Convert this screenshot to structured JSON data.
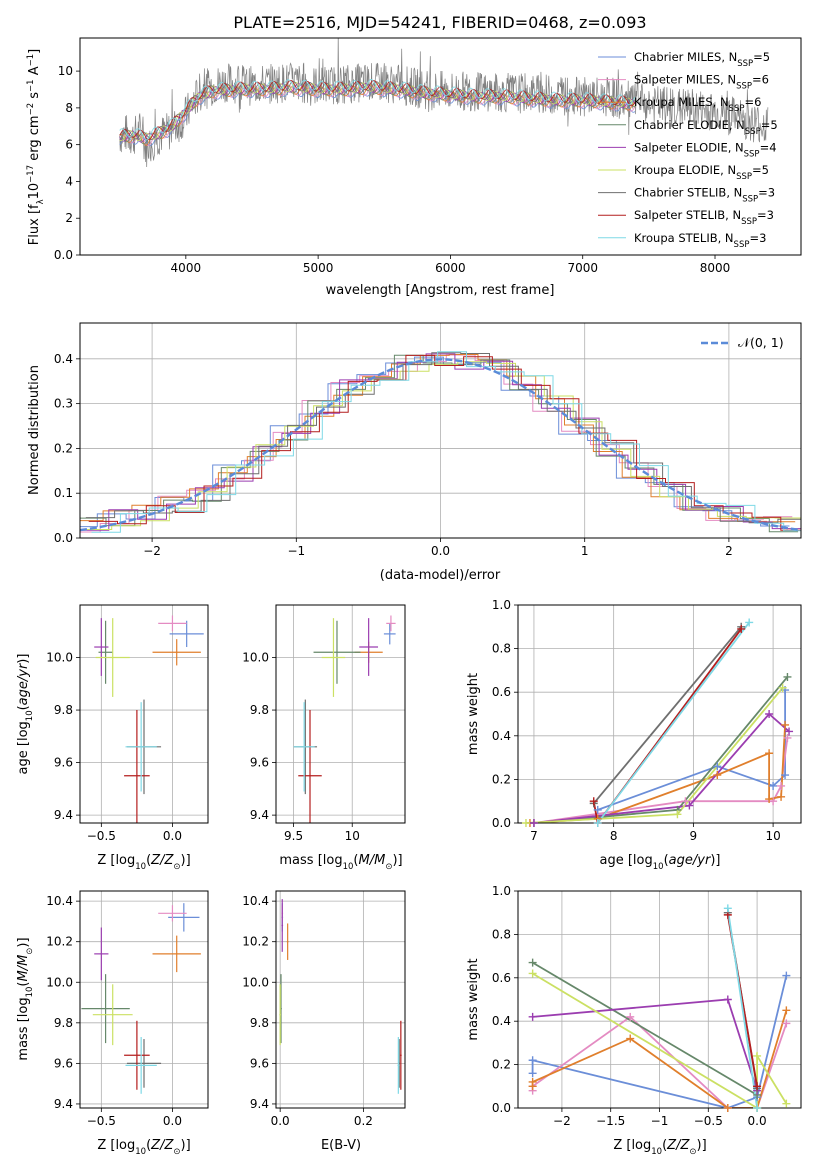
{
  "figure_title": "PLATE=2516, MJD=54241, FIBERID=0468, z=0.093",
  "colors": {
    "Chabrier MILES": "#6b8ed8",
    "Salpeter MILES": "#e48bc2",
    "Kroupa MILES": "#e07f2c",
    "Chabrier ELODIE": "#66886a",
    "Salpeter ELODIE": "#9b3db0",
    "Kroupa ELODIE": "#cbe063",
    "Chabrier STELIB": "#6f6f6f",
    "Salpeter STELIB": "#b41e1e",
    "Kroupa STELIB": "#7fd9e6"
  },
  "chart_data": [
    {
      "id": "spectrum",
      "type": "line",
      "xlabel": "wavelength [Angstrom, rest frame]",
      "ylabel": "Flux [f_λ 10^-17 erg cm^-2 s^-1 A^-1]",
      "xlim": [
        3200,
        8650
      ],
      "ylim": [
        0,
        11.8
      ],
      "xticks": [
        4000,
        5000,
        6000,
        7000,
        8000
      ],
      "yticks": [
        0,
        2,
        4,
        6,
        8,
        10
      ],
      "legend_position": "upper right",
      "legend": [
        {
          "label": "Chabrier MILES, N_SSP=5",
          "series": "Chabrier MILES"
        },
        {
          "label": "Salpeter MILES, N_SSP=6",
          "series": "Salpeter MILES"
        },
        {
          "label": "Kroupa MILES, N_SSP=6",
          "series": "Kroupa MILES"
        },
        {
          "label": "Chabrier ELODIE, N_SSP=5",
          "series": "Chabrier ELODIE"
        },
        {
          "label": "Salpeter ELODIE, N_SSP=4",
          "series": "Salpeter ELODIE"
        },
        {
          "label": "Kroupa ELODIE, N_SSP=5",
          "series": "Kroupa ELODIE"
        },
        {
          "label": "Chabrier STELIB, N_SSP=3",
          "series": "Chabrier STELIB"
        },
        {
          "label": "Salpeter STELIB, N_SSP=3",
          "series": "Salpeter STELIB"
        },
        {
          "label": "Kroupa STELIB, N_SSP=3",
          "series": "Kroupa STELIB"
        }
      ],
      "data_curve": {
        "name": "data",
        "x": [
          3500,
          3550,
          3600,
          3650,
          3700,
          3750,
          3800,
          3900,
          4000,
          4100,
          4200,
          4300,
          4400,
          4500,
          4600,
          4800,
          5000,
          5200,
          5400,
          5600,
          5800,
          6000,
          6200,
          6400,
          6600,
          6800,
          7000,
          7200,
          7400,
          7600,
          7800,
          8000,
          8200,
          8400
        ],
        "y": [
          6.5,
          6.6,
          6.4,
          6.8,
          5.8,
          6.2,
          6.5,
          6.8,
          7.6,
          8.8,
          9.2,
          9.4,
          9.3,
          9.2,
          9.3,
          9.4,
          9.2,
          9.3,
          9.4,
          9.3,
          9.0,
          8.9,
          8.9,
          8.8,
          8.8,
          8.7,
          8.6,
          8.6,
          8.3,
          8.1,
          8.0,
          7.8,
          7.4,
          7.0
        ]
      },
      "model_curve": {
        "x": [
          3500,
          3600,
          3700,
          3800,
          3900,
          4000,
          4100,
          4200,
          4400,
          4600,
          4800,
          5000,
          5200,
          5400,
          5600,
          5800,
          6000,
          6200,
          6400,
          6600,
          6800,
          7000,
          7200,
          7400
        ],
        "y": [
          6.4,
          6.5,
          6.3,
          6.6,
          7.0,
          7.8,
          8.6,
          8.9,
          9.0,
          9.0,
          9.1,
          9.0,
          9.0,
          9.1,
          9.0,
          8.8,
          8.7,
          8.6,
          8.6,
          8.5,
          8.4,
          8.4,
          8.3,
          8.2
        ]
      }
    },
    {
      "id": "residuals",
      "type": "line",
      "xlabel": "(data-model)/error",
      "ylabel": "Normed distribution",
      "xlim": [
        -2.5,
        2.5
      ],
      "ylim": [
        0,
        0.48
      ],
      "xticks": [
        -2,
        -1,
        0,
        1,
        2
      ],
      "yticks": [
        0.0,
        0.1,
        0.2,
        0.3,
        0.4
      ],
      "legend": [
        "𝒩(0, 1)"
      ],
      "legend_position": "upper right",
      "bin_edges": [
        -2.5,
        -2.3,
        -2.1,
        -1.9,
        -1.7,
        -1.5,
        -1.3,
        -1.1,
        -0.9,
        -0.7,
        -0.5,
        -0.3,
        -0.1,
        0.1,
        0.3,
        0.5,
        0.7,
        0.9,
        1.1,
        1.3,
        1.5,
        1.7,
        1.9,
        2.1,
        2.3,
        2.5
      ],
      "histogram_mean": [
        0.03,
        0.045,
        0.055,
        0.075,
        0.1,
        0.145,
        0.19,
        0.235,
        0.29,
        0.335,
        0.37,
        0.39,
        0.4,
        0.395,
        0.38,
        0.345,
        0.3,
        0.25,
        0.2,
        0.15,
        0.11,
        0.08,
        0.055,
        0.04,
        0.03
      ],
      "gaussian": {
        "mu": 0,
        "sigma": 1
      }
    },
    {
      "id": "Z-age",
      "type": "scatter",
      "xlabel": "Z [log10(Z/Z☉)]",
      "ylabel": "age [log10(age/yr)]",
      "xlim": [
        -0.65,
        0.25
      ],
      "ylim": [
        9.37,
        10.2
      ],
      "xticks": [
        -0.5,
        0.0
      ],
      "yticks": [
        9.4,
        9.6,
        9.8,
        10.0
      ],
      "points": [
        {
          "series": "Chabrier MILES",
          "x": 0.1,
          "xerr": 0.12,
          "y": 10.09,
          "yerr": 0.05
        },
        {
          "series": "Salpeter MILES",
          "x": 0.0,
          "xerr": 0.1,
          "y": 10.13,
          "yerr": 0.03
        },
        {
          "series": "Kroupa MILES",
          "x": 0.03,
          "xerr": 0.17,
          "y": 10.02,
          "yerr": 0.05
        },
        {
          "series": "Chabrier ELODIE",
          "x": -0.47,
          "xerr": 0.05,
          "y": 10.02,
          "yerr": 0.12
        },
        {
          "series": "Salpeter ELODIE",
          "x": -0.5,
          "xerr": 0.05,
          "y": 10.04,
          "yerr": 0.11
        },
        {
          "series": "Kroupa ELODIE",
          "x": -0.42,
          "xerr": 0.12,
          "y": 10.0,
          "yerr": 0.15
        },
        {
          "series": "Chabrier STELIB",
          "x": -0.2,
          "xerr": 0.12,
          "y": 9.66,
          "yerr": 0.18
        },
        {
          "series": "Salpeter STELIB",
          "x": -0.25,
          "xerr": 0.09,
          "y": 9.55,
          "yerr": 0.25
        },
        {
          "series": "Kroupa STELIB",
          "x": -0.22,
          "xerr": 0.11,
          "y": 9.66,
          "yerr": 0.17
        }
      ]
    },
    {
      "id": "mass-age",
      "type": "scatter",
      "xlabel": "mass [log10(M/M☉)]",
      "ylabel": "",
      "xlim": [
        9.35,
        10.45
      ],
      "ylim": [
        9.37,
        10.2
      ],
      "xticks": [
        9.5,
        10.0
      ],
      "yticks": [
        9.4,
        9.6,
        9.8,
        10.0
      ],
      "points": [
        {
          "series": "Chabrier MILES",
          "x": 10.32,
          "xerr": 0.05,
          "y": 10.09,
          "yerr": 0.04
        },
        {
          "series": "Salpeter MILES",
          "x": 10.33,
          "xerr": 0.04,
          "y": 10.13,
          "yerr": 0.03
        },
        {
          "series": "Kroupa MILES",
          "x": 10.14,
          "xerr": 0.12,
          "y": 10.02,
          "yerr": 0.04
        },
        {
          "series": "Chabrier ELODIE",
          "x": 9.87,
          "xerr": 0.2,
          "y": 10.02,
          "yerr": 0.12
        },
        {
          "series": "Salpeter ELODIE",
          "x": 10.14,
          "xerr": 0.08,
          "y": 10.04,
          "yerr": 0.11
        },
        {
          "series": "Kroupa ELODIE",
          "x": 9.84,
          "xerr": 0.1,
          "y": 10.0,
          "yerr": 0.15
        },
        {
          "series": "Chabrier STELIB",
          "x": 9.6,
          "xerr": 0.1,
          "y": 9.66,
          "yerr": 0.18
        },
        {
          "series": "Salpeter STELIB",
          "x": 9.64,
          "xerr": 0.1,
          "y": 9.55,
          "yerr": 0.25
        },
        {
          "series": "Kroupa STELIB",
          "x": 9.59,
          "xerr": 0.09,
          "y": 9.66,
          "yerr": 0.17
        }
      ]
    },
    {
      "id": "age-weight",
      "type": "line",
      "xlabel": "age [log10(age/yr)]",
      "ylabel": "mass weight",
      "xlim": [
        6.8,
        10.35
      ],
      "ylim": [
        0,
        1
      ],
      "xticks": [
        7,
        8,
        9,
        10
      ],
      "yticks": [
        0.0,
        0.2,
        0.4,
        0.6,
        0.8,
        1.0
      ],
      "series": [
        {
          "name": "Chabrier MILES",
          "x": [
            7.8,
            9.3,
            10.0,
            10.15,
            10.15
          ],
          "y": [
            0.06,
            0.26,
            0.17,
            0.22,
            0.61
          ]
        },
        {
          "name": "Salpeter MILES",
          "x": [
            7.0,
            8.9,
            10.0,
            10.1,
            10.18
          ],
          "y": [
            0.0,
            0.1,
            0.1,
            0.17,
            0.39
          ]
        },
        {
          "name": "Kroupa MILES",
          "x": [
            6.95,
            7.8,
            9.3,
            9.95,
            9.95,
            10.1,
            10.15
          ],
          "y": [
            0.0,
            0.02,
            0.22,
            0.32,
            0.11,
            0.12,
            0.45
          ]
        },
        {
          "name": "Chabrier ELODIE",
          "x": [
            7.0,
            8.8,
            10.18
          ],
          "y": [
            0.0,
            0.06,
            0.67
          ]
        },
        {
          "name": "Salpeter ELODIE",
          "x": [
            7.0,
            8.95,
            9.95,
            10.2
          ],
          "y": [
            0.0,
            0.08,
            0.5,
            0.42
          ]
        },
        {
          "name": "Kroupa ELODIE",
          "x": [
            6.9,
            8.8,
            10.12
          ],
          "y": [
            0.0,
            0.04,
            0.62
          ]
        },
        {
          "name": "Chabrier STELIB",
          "x": [
            7.75,
            9.6
          ],
          "y": [
            0.09,
            0.9
          ]
        },
        {
          "name": "Salpeter STELIB",
          "x": [
            7.75,
            7.8,
            9.6
          ],
          "y": [
            0.1,
            0.0,
            0.89
          ]
        },
        {
          "name": "Kroupa STELIB",
          "x": [
            7.8,
            9.7
          ],
          "y": [
            0.0,
            0.92
          ]
        }
      ]
    },
    {
      "id": "Z-mass",
      "type": "scatter",
      "xlabel": "Z [log10(Z/Z☉)]",
      "ylabel": "mass [log10(M/M☉)]",
      "xlim": [
        -0.65,
        0.25
      ],
      "ylim": [
        9.38,
        10.45
      ],
      "xticks": [
        -0.5,
        0.0
      ],
      "yticks": [
        9.4,
        9.6,
        9.8,
        10.0,
        10.2,
        10.4
      ],
      "points": [
        {
          "series": "Chabrier MILES",
          "x": 0.08,
          "xerr": 0.11,
          "y": 10.32,
          "yerr": 0.07
        },
        {
          "series": "Salpeter MILES",
          "x": 0.0,
          "xerr": 0.1,
          "y": 10.34,
          "yerr": 0.04
        },
        {
          "series": "Kroupa MILES",
          "x": 0.03,
          "xerr": 0.17,
          "y": 10.14,
          "yerr": 0.09
        },
        {
          "series": "Chabrier ELODIE",
          "x": -0.47,
          "xerr": 0.17,
          "y": 9.87,
          "yerr": 0.17
        },
        {
          "series": "Salpeter ELODIE",
          "x": -0.5,
          "xerr": 0.05,
          "y": 10.14,
          "yerr": 0.13
        },
        {
          "series": "Kroupa ELODIE",
          "x": -0.42,
          "xerr": 0.14,
          "y": 9.84,
          "yerr": 0.15
        },
        {
          "series": "Chabrier STELIB",
          "x": -0.2,
          "xerr": 0.12,
          "y": 9.6,
          "yerr": 0.12
        },
        {
          "series": "Salpeter STELIB",
          "x": -0.25,
          "xerr": 0.09,
          "y": 9.64,
          "yerr": 0.17
        },
        {
          "series": "Kroupa STELIB",
          "x": -0.22,
          "xerr": 0.11,
          "y": 9.59,
          "yerr": 0.14
        }
      ]
    },
    {
      "id": "ebv-mass",
      "type": "scatter",
      "xlabel": "E(B-V)",
      "ylabel": "",
      "xlim": [
        -0.01,
        0.3
      ],
      "ylim": [
        9.38,
        10.45
      ],
      "xticks": [
        0.0,
        0.2
      ],
      "yticks": [
        9.4,
        9.6,
        9.8,
        10.0,
        10.2,
        10.4
      ],
      "points": [
        {
          "series": "Chabrier MILES",
          "x": 0.005,
          "xerr": 0.002,
          "y": 10.32,
          "yerr": 0.07
        },
        {
          "series": "Salpeter MILES",
          "x": 0.005,
          "xerr": 0.002,
          "y": 10.34,
          "yerr": 0.04
        },
        {
          "series": "Kroupa MILES",
          "x": 0.018,
          "xerr": 0.002,
          "y": 10.2,
          "yerr": 0.09
        },
        {
          "series": "Chabrier ELODIE",
          "x": 0.002,
          "xerr": 0.002,
          "y": 9.87,
          "yerr": 0.17
        },
        {
          "series": "Salpeter ELODIE",
          "x": 0.005,
          "xerr": 0.002,
          "y": 10.28,
          "yerr": 0.13
        },
        {
          "series": "Kroupa ELODIE",
          "x": 0.0,
          "xerr": 0.002,
          "y": 9.84,
          "yerr": 0.15
        },
        {
          "series": "Chabrier STELIB",
          "x": 0.286,
          "xerr": 0.002,
          "y": 9.6,
          "yerr": 0.12
        },
        {
          "series": "Salpeter STELIB",
          "x": 0.29,
          "xerr": 0.002,
          "y": 9.64,
          "yerr": 0.17
        },
        {
          "series": "Kroupa STELIB",
          "x": 0.284,
          "xerr": 0.002,
          "y": 9.59,
          "yerr": 0.14
        }
      ]
    },
    {
      "id": "Z-weight",
      "type": "line",
      "xlabel": "Z [log10(Z/Z☉)]",
      "ylabel": "mass weight",
      "xlim": [
        -2.45,
        0.45
      ],
      "ylim": [
        0,
        1
      ],
      "xticks": [
        -2.0,
        -1.5,
        -1.0,
        -0.5,
        0.0
      ],
      "yticks": [
        0.0,
        0.2,
        0.4,
        0.6,
        0.8,
        1.0
      ],
      "series": [
        {
          "name": "Chabrier MILES",
          "x": [
            -2.3,
            -2.3,
            -0.3,
            0.0,
            0.3
          ],
          "y": [
            0.16,
            0.22,
            0.0,
            0.05,
            0.61
          ]
        },
        {
          "name": "Salpeter MILES",
          "x": [
            -2.3,
            -2.3,
            -1.3,
            -0.3,
            0.0,
            0.3
          ],
          "y": [
            0.08,
            0.1,
            0.42,
            0.0,
            0.0,
            0.39
          ]
        },
        {
          "name": "Kroupa MILES",
          "x": [
            -2.3,
            -2.3,
            -1.3,
            -0.3,
            0.0,
            0.3
          ],
          "y": [
            0.1,
            0.12,
            0.32,
            0.0,
            0.0,
            0.45
          ]
        },
        {
          "name": "Chabrier ELODIE",
          "x": [
            -2.3,
            0.0
          ],
          "y": [
            0.67,
            0.06
          ]
        },
        {
          "name": "Salpeter ELODIE",
          "x": [
            -2.3,
            -0.3,
            0.0
          ],
          "y": [
            0.42,
            0.5,
            0.08
          ]
        },
        {
          "name": "Kroupa ELODIE",
          "x": [
            -2.3,
            0.0,
            0.0,
            0.3
          ],
          "y": [
            0.62,
            0.0,
            0.24,
            0.02
          ]
        },
        {
          "name": "Chabrier STELIB",
          "x": [
            -0.3,
            0.0
          ],
          "y": [
            0.9,
            0.09
          ]
        },
        {
          "name": "Salpeter STELIB",
          "x": [
            -0.3,
            0.0
          ],
          "y": [
            0.89,
            0.1
          ]
        },
        {
          "name": "Kroupa STELIB",
          "x": [
            -0.3,
            0.0
          ],
          "y": [
            0.92,
            0.0
          ]
        }
      ]
    }
  ]
}
